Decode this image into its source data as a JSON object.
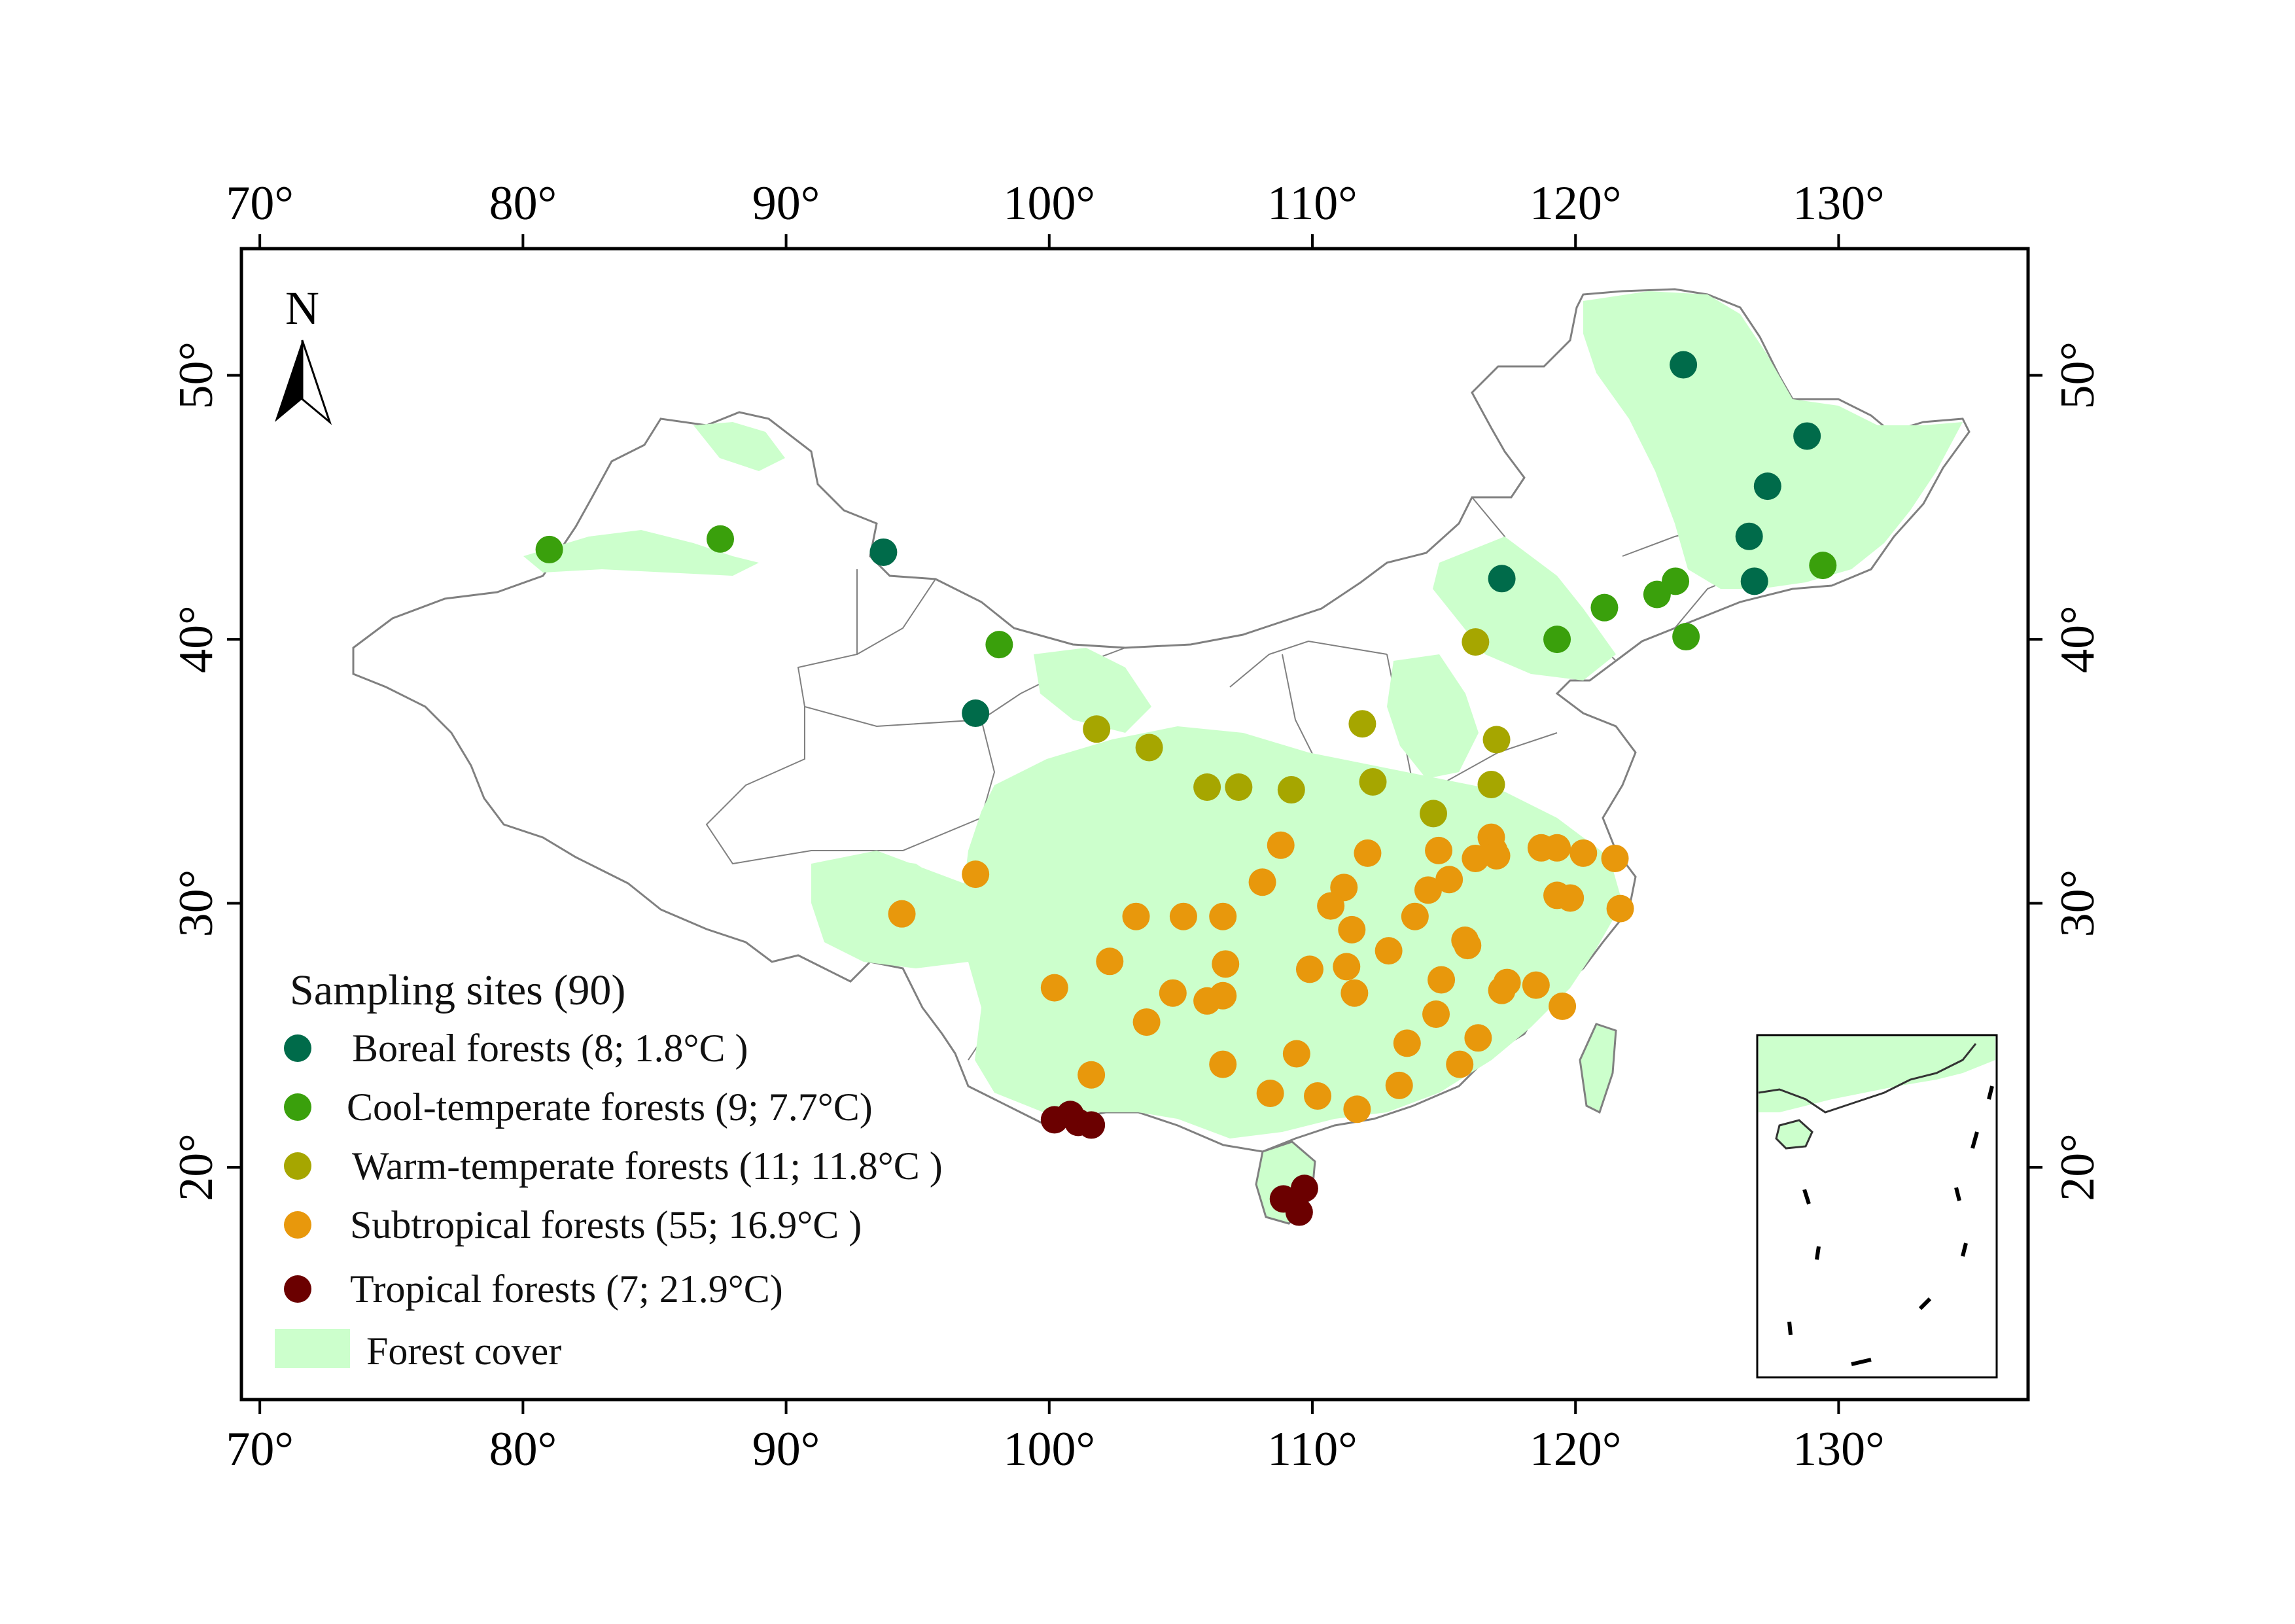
{
  "map": {
    "lon_ticks": [
      "70°",
      "80°",
      "90°",
      "100°",
      "110°",
      "120°",
      "130°"
    ],
    "lon_values": [
      70,
      80,
      90,
      100,
      110,
      120,
      130
    ],
    "lat_ticks": [
      "20°",
      "30°",
      "40°",
      "50°"
    ],
    "lat_values": [
      20,
      30,
      40,
      50
    ],
    "lon_range": [
      69.3,
      137.2
    ],
    "lat_range": [
      11.2,
      54.8
    ],
    "north_label": "N",
    "forest_color": "#ccffcc",
    "border_color": "#808080"
  },
  "legend": {
    "title": "Sampling sites (90)",
    "items": [
      {
        "label": "Boreal forests (8; 1.8°C )",
        "color": "#006b4a"
      },
      {
        "label": "Cool-temperate forests (9; 7.7°C)",
        "color": "#3aa00c"
      },
      {
        "label": "Warm-temperate forests (11; 11.8°C )",
        "color": "#a6a600"
      },
      {
        "label": "Subtropical forests (55; 16.9°C )",
        "color": "#e8980c"
      },
      {
        "label": "Tropical forests (7; 21.9°C)",
        "color": "#6b0000"
      }
    ],
    "forest_cover_label": "Forest cover"
  },
  "sites": {
    "boreal": [
      [
        124.1,
        50.4
      ],
      [
        128.8,
        47.7
      ],
      [
        127.3,
        45.8
      ],
      [
        126.6,
        43.9
      ],
      [
        126.8,
        42.2
      ],
      [
        117.2,
        42.3
      ],
      [
        93.7,
        43.3
      ],
      [
        97.2,
        37.2
      ]
    ],
    "cool_temperate": [
      [
        81.0,
        43.4
      ],
      [
        87.5,
        43.8
      ],
      [
        98.1,
        39.8
      ],
      [
        119.3,
        40.0
      ],
      [
        121.1,
        41.2
      ],
      [
        123.1,
        41.7
      ],
      [
        123.8,
        42.2
      ],
      [
        124.2,
        40.1
      ],
      [
        129.4,
        42.8
      ]
    ],
    "warm_temperate": [
      [
        116.2,
        39.9
      ],
      [
        101.8,
        36.6
      ],
      [
        103.8,
        35.9
      ],
      [
        106.0,
        34.4
      ],
      [
        107.2,
        34.4
      ],
      [
        109.2,
        34.3
      ],
      [
        111.9,
        36.8
      ],
      [
        112.3,
        34.6
      ],
      [
        114.6,
        33.4
      ],
      [
        117.0,
        36.2
      ],
      [
        116.8,
        34.5
      ]
    ],
    "subtropical": [
      [
        94.4,
        29.6
      ],
      [
        97.2,
        31.1
      ],
      [
        100.2,
        26.8
      ],
      [
        102.3,
        27.8
      ],
      [
        103.3,
        29.5
      ],
      [
        101.6,
        23.5
      ],
      [
        103.7,
        25.5
      ],
      [
        104.7,
        26.6
      ],
      [
        105.1,
        29.5
      ],
      [
        106.0,
        26.3
      ],
      [
        106.6,
        26.5
      ],
      [
        106.7,
        27.7
      ],
      [
        106.6,
        29.5
      ],
      [
        106.6,
        23.9
      ],
      [
        108.1,
        30.8
      ],
      [
        108.8,
        32.2
      ],
      [
        108.4,
        22.8
      ],
      [
        109.4,
        24.3
      ],
      [
        109.9,
        27.5
      ],
      [
        110.2,
        22.7
      ],
      [
        111.2,
        30.6
      ],
      [
        111.5,
        29.0
      ],
      [
        111.3,
        27.6
      ],
      [
        111.6,
        26.6
      ],
      [
        111.7,
        22.2
      ],
      [
        112.1,
        31.9
      ],
      [
        112.9,
        28.2
      ],
      [
        113.3,
        23.1
      ],
      [
        113.6,
        24.7
      ],
      [
        114.4,
        30.5
      ],
      [
        114.8,
        32.0
      ],
      [
        114.9,
        27.1
      ],
      [
        114.7,
        25.8
      ],
      [
        115.6,
        23.9
      ],
      [
        115.8,
        28.6
      ],
      [
        115.9,
        28.4
      ],
      [
        116.3,
        24.9
      ],
      [
        116.2,
        31.7
      ],
      [
        116.8,
        32.5
      ],
      [
        116.9,
        32.0
      ],
      [
        117.0,
        31.8
      ],
      [
        117.2,
        26.7
      ],
      [
        117.4,
        27.0
      ],
      [
        118.5,
        26.9
      ],
      [
        118.7,
        32.1
      ],
      [
        119.3,
        32.1
      ],
      [
        119.3,
        30.3
      ],
      [
        119.8,
        30.2
      ],
      [
        119.5,
        26.1
      ],
      [
        120.3,
        31.9
      ],
      [
        121.5,
        31.7
      ],
      [
        121.7,
        29.8
      ],
      [
        115.2,
        30.9
      ],
      [
        113.9,
        29.5
      ],
      [
        110.7,
        29.9
      ]
    ],
    "tropical": [
      [
        100.2,
        21.8
      ],
      [
        100.8,
        22.0
      ],
      [
        101.1,
        21.7
      ],
      [
        101.6,
        21.6
      ],
      [
        108.9,
        18.8
      ],
      [
        109.7,
        19.2
      ],
      [
        109.5,
        18.3
      ]
    ]
  }
}
